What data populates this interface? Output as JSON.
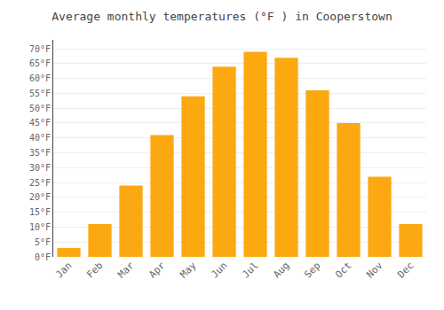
{
  "chart_data": {
    "type": "bar",
    "title": "Average monthly temperatures (°F ) in Cooperstown",
    "categories": [
      "Jan",
      "Feb",
      "Mar",
      "Apr",
      "May",
      "Jun",
      "Jul",
      "Aug",
      "Sep",
      "Oct",
      "Nov",
      "Dec"
    ],
    "values": [
      3,
      11,
      24,
      41,
      54,
      64,
      69,
      67,
      56,
      45,
      27,
      11
    ],
    "color": "#FCA811",
    "ylim": [
      0,
      73
    ],
    "yticks": [
      {
        "value": 0,
        "label": "0°F"
      },
      {
        "value": 5,
        "label": "5°F"
      },
      {
        "value": 10,
        "label": "10°F"
      },
      {
        "value": 15,
        "label": "15°F"
      },
      {
        "value": 20,
        "label": "20°F"
      },
      {
        "value": 25,
        "label": "25°F"
      },
      {
        "value": 30,
        "label": "30°F"
      },
      {
        "value": 35,
        "label": "35°F"
      },
      {
        "value": 40,
        "label": "40°F"
      },
      {
        "value": 45,
        "label": "45°F"
      },
      {
        "value": 50,
        "label": "50°F"
      },
      {
        "value": 55,
        "label": "55°F"
      },
      {
        "value": 60,
        "label": "60°F"
      },
      {
        "value": 65,
        "label": "65°F"
      },
      {
        "value": 70,
        "label": "70°F"
      }
    ],
    "grid": true
  }
}
